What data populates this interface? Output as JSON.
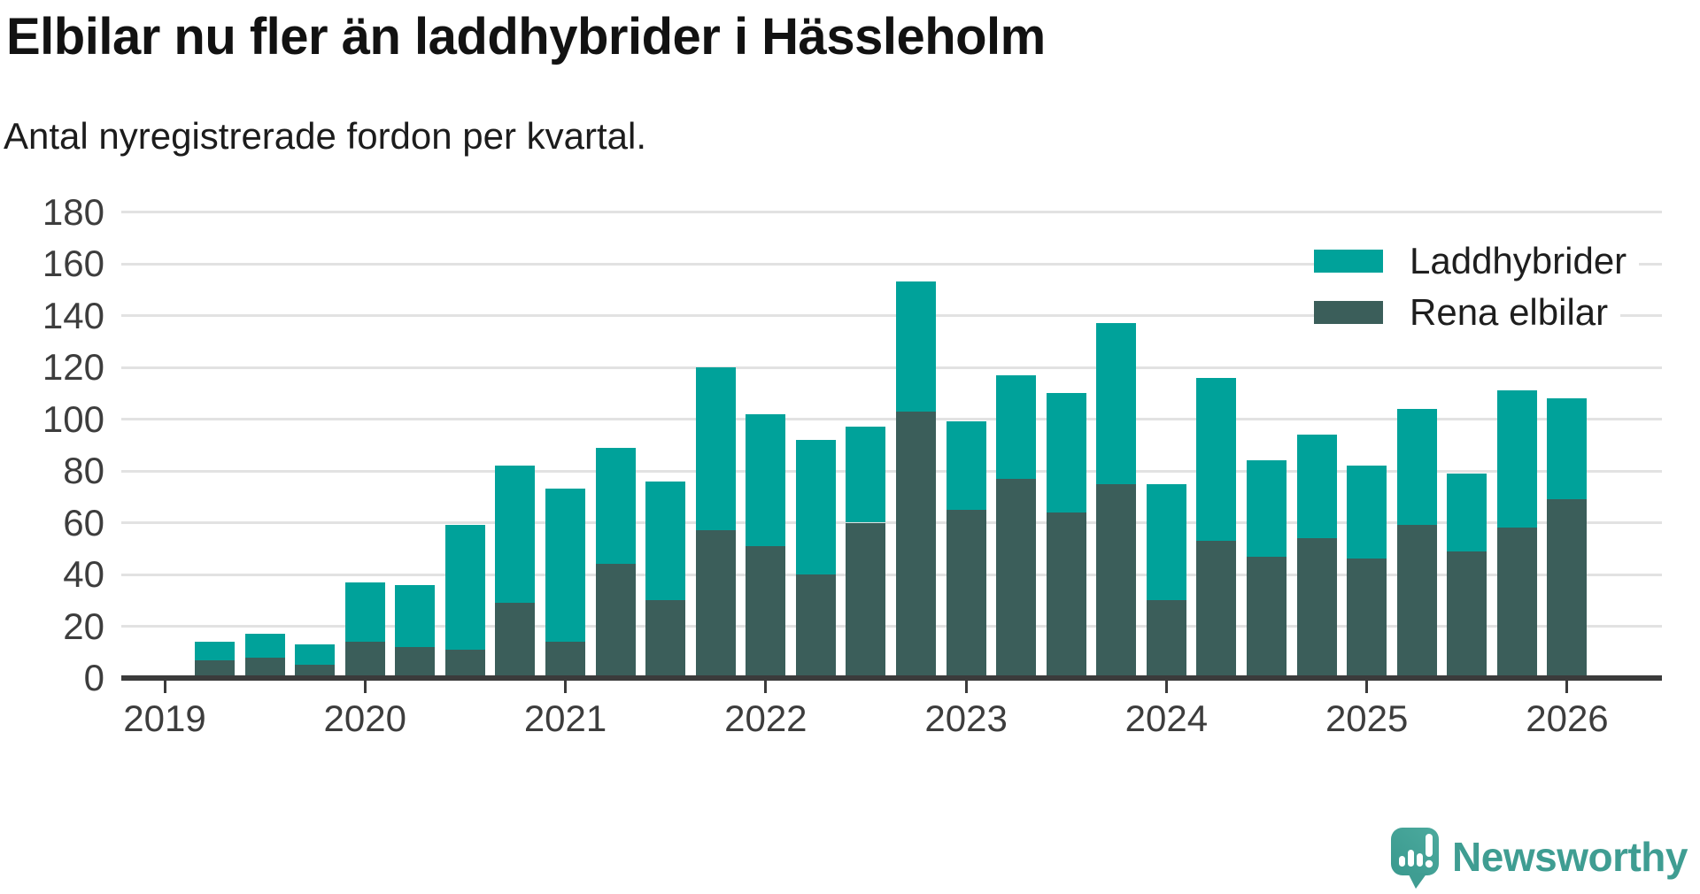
{
  "chart_data": {
    "type": "bar",
    "stacked": true,
    "title": "Elbilar nu fler än laddhybrider i Hässleholm",
    "subtitle": "Antal nyregistrerade fordon per kvartal.",
    "grid": true,
    "legend_position": "top-right",
    "ylim": [
      0,
      180
    ],
    "y_ticks": [
      0,
      20,
      40,
      60,
      80,
      100,
      120,
      140,
      160,
      180
    ],
    "x_year_labels": [
      "2019",
      "2020",
      "2021",
      "2022",
      "2023",
      "2024",
      "2025",
      "2026"
    ],
    "quarters": [
      "2019 Q2",
      "2019 Q3",
      "2019 Q4",
      "2020 Q1",
      "2020 Q2",
      "2020 Q3",
      "2020 Q4",
      "2021 Q1",
      "2021 Q2",
      "2021 Q3",
      "2021 Q4",
      "2022 Q1",
      "2022 Q2",
      "2022 Q3",
      "2022 Q4",
      "2023 Q1",
      "2023 Q2",
      "2023 Q3",
      "2023 Q4",
      "2024 Q1",
      "2024 Q2",
      "2024 Q3",
      "2024 Q4",
      "2025 Q1",
      "2025 Q2",
      "2025 Q3",
      "2025 Q4",
      "2026 Q1"
    ],
    "series": [
      {
        "name": "Laddhybrider",
        "color": "#00a29a",
        "stack": "top",
        "values": [
          7,
          9,
          8,
          23,
          24,
          48,
          53,
          59,
          45,
          46,
          63,
          51,
          52,
          37,
          50,
          34,
          40,
          46,
          62,
          45,
          63,
          37,
          40,
          36,
          45,
          30,
          53,
          39
        ]
      },
      {
        "name": "Rena elbilar",
        "color": "#3b5e5a",
        "stack": "bottom",
        "values": [
          7,
          8,
          5,
          14,
          12,
          11,
          29,
          14,
          44,
          30,
          57,
          51,
          40,
          60,
          103,
          65,
          77,
          64,
          75,
          30,
          53,
          47,
          54,
          46,
          59,
          49,
          58,
          69
        ]
      }
    ],
    "stacked_totals": [
      14,
      17,
      13,
      37,
      36,
      59,
      82,
      73,
      89,
      76,
      120,
      102,
      92,
      97,
      153,
      99,
      117,
      110,
      137,
      75,
      116,
      84,
      94,
      82,
      104,
      79,
      111,
      108
    ]
  },
  "colors": {
    "grid": "#e2e2e2",
    "axis": "#3b3b3b",
    "tick_label": "#3d3d3d"
  },
  "logo": {
    "text": "Newsworthy",
    "text_color": "#3f9d92",
    "bubble_color": "#44a398",
    "bubble_color_dark": "#3a998e"
  }
}
